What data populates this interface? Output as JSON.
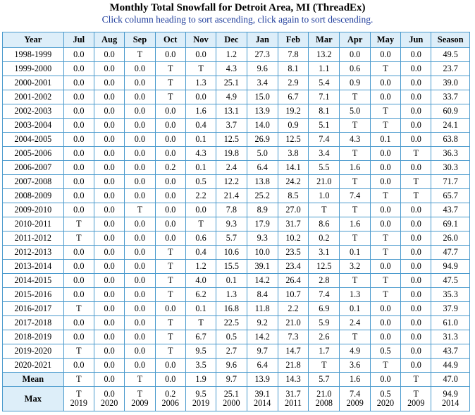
{
  "title": "Monthly Total Snowfall for Detroit Area, MI (ThreadEx)",
  "subtitle": "Click column heading to sort ascending, click again to sort descending.",
  "columns": [
    "Year",
    "Jul",
    "Aug",
    "Sep",
    "Oct",
    "Nov",
    "Dec",
    "Jan",
    "Feb",
    "Mar",
    "Apr",
    "May",
    "Jun",
    "Season"
  ],
  "rows": [
    [
      "1998-1999",
      "0.0",
      "0.0",
      "T",
      "0.0",
      "0.0",
      "1.2",
      "27.3",
      "7.8",
      "13.2",
      "0.0",
      "0.0",
      "0.0",
      "49.5"
    ],
    [
      "1999-2000",
      "0.0",
      "0.0",
      "0.0",
      "T",
      "T",
      "4.3",
      "9.6",
      "8.1",
      "1.1",
      "0.6",
      "T",
      "0.0",
      "23.7"
    ],
    [
      "2000-2001",
      "0.0",
      "0.0",
      "0.0",
      "T",
      "1.3",
      "25.1",
      "3.4",
      "2.9",
      "5.4",
      "0.9",
      "0.0",
      "0.0",
      "39.0"
    ],
    [
      "2001-2002",
      "0.0",
      "0.0",
      "0.0",
      "T",
      "0.0",
      "4.9",
      "15.0",
      "6.7",
      "7.1",
      "T",
      "0.0",
      "0.0",
      "33.7"
    ],
    [
      "2002-2003",
      "0.0",
      "0.0",
      "0.0",
      "0.0",
      "1.6",
      "13.1",
      "13.9",
      "19.2",
      "8.1",
      "5.0",
      "T",
      "0.0",
      "60.9"
    ],
    [
      "2003-2004",
      "0.0",
      "0.0",
      "0.0",
      "0.0",
      "0.4",
      "3.7",
      "14.0",
      "0.9",
      "5.1",
      "T",
      "T",
      "0.0",
      "24.1"
    ],
    [
      "2004-2005",
      "0.0",
      "0.0",
      "0.0",
      "0.0",
      "0.1",
      "12.5",
      "26.9",
      "12.5",
      "7.4",
      "4.3",
      "0.1",
      "0.0",
      "63.8"
    ],
    [
      "2005-2006",
      "0.0",
      "0.0",
      "0.0",
      "0.0",
      "4.3",
      "19.8",
      "5.0",
      "3.8",
      "3.4",
      "T",
      "0.0",
      "T",
      "36.3"
    ],
    [
      "2006-2007",
      "0.0",
      "0.0",
      "0.0",
      "0.2",
      "0.1",
      "2.4",
      "6.4",
      "14.1",
      "5.5",
      "1.6",
      "0.0",
      "0.0",
      "30.3"
    ],
    [
      "2007-2008",
      "0.0",
      "0.0",
      "0.0",
      "0.0",
      "0.5",
      "12.2",
      "13.8",
      "24.2",
      "21.0",
      "T",
      "0.0",
      "T",
      "71.7"
    ],
    [
      "2008-2009",
      "0.0",
      "0.0",
      "0.0",
      "0.0",
      "2.2",
      "21.4",
      "25.2",
      "8.5",
      "1.0",
      "7.4",
      "T",
      "T",
      "65.7"
    ],
    [
      "2009-2010",
      "0.0",
      "0.0",
      "T",
      "0.0",
      "0.0",
      "7.8",
      "8.9",
      "27.0",
      "T",
      "T",
      "0.0",
      "0.0",
      "43.7"
    ],
    [
      "2010-2011",
      "T",
      "0.0",
      "0.0",
      "0.0",
      "T",
      "9.3",
      "17.9",
      "31.7",
      "8.6",
      "1.6",
      "0.0",
      "0.0",
      "69.1"
    ],
    [
      "2011-2012",
      "T",
      "0.0",
      "0.0",
      "0.0",
      "0.6",
      "5.7",
      "9.3",
      "10.2",
      "0.2",
      "T",
      "T",
      "0.0",
      "26.0"
    ],
    [
      "2012-2013",
      "0.0",
      "0.0",
      "0.0",
      "T",
      "0.4",
      "10.6",
      "10.0",
      "23.5",
      "3.1",
      "0.1",
      "T",
      "0.0",
      "47.7"
    ],
    [
      "2013-2014",
      "0.0",
      "0.0",
      "0.0",
      "T",
      "1.2",
      "15.5",
      "39.1",
      "23.4",
      "12.5",
      "3.2",
      "0.0",
      "0.0",
      "94.9"
    ],
    [
      "2014-2015",
      "0.0",
      "0.0",
      "0.0",
      "T",
      "4.0",
      "0.1",
      "14.2",
      "26.4",
      "2.8",
      "T",
      "T",
      "0.0",
      "47.5"
    ],
    [
      "2015-2016",
      "0.0",
      "0.0",
      "0.0",
      "T",
      "6.2",
      "1.3",
      "8.4",
      "10.7",
      "7.4",
      "1.3",
      "T",
      "0.0",
      "35.3"
    ],
    [
      "2016-2017",
      "T",
      "0.0",
      "0.0",
      "0.0",
      "0.1",
      "16.8",
      "11.8",
      "2.2",
      "6.9",
      "0.1",
      "0.0",
      "0.0",
      "37.9"
    ],
    [
      "2017-2018",
      "0.0",
      "0.0",
      "0.0",
      "T",
      "T",
      "22.5",
      "9.2",
      "21.0",
      "5.9",
      "2.4",
      "0.0",
      "0.0",
      "61.0"
    ],
    [
      "2018-2019",
      "0.0",
      "0.0",
      "0.0",
      "T",
      "6.7",
      "0.5",
      "14.2",
      "7.3",
      "2.6",
      "T",
      "0.0",
      "0.0",
      "31.3"
    ],
    [
      "2019-2020",
      "T",
      "0.0",
      "0.0",
      "T",
      "9.5",
      "2.7",
      "9.7",
      "14.7",
      "1.7",
      "4.9",
      "0.5",
      "0.0",
      "43.7"
    ],
    [
      "2020-2021",
      "0.0",
      "0.0",
      "0.0",
      "0.0",
      "3.5",
      "9.6",
      "6.4",
      "21.8",
      "T",
      "3.6",
      "T",
      "0.0",
      "44.9"
    ]
  ],
  "mean": {
    "label": "Mean",
    "values": [
      "T",
      "0.0",
      "T",
      "0.0",
      "1.9",
      "9.7",
      "13.9",
      "14.3",
      "5.7",
      "1.6",
      "0.0",
      "T",
      "47.0"
    ]
  },
  "max": {
    "label": "Max",
    "values": [
      {
        "v": "T",
        "y": "2019"
      },
      {
        "v": "0.0",
        "y": "2020"
      },
      {
        "v": "T",
        "y": "2009"
      },
      {
        "v": "0.2",
        "y": "2006"
      },
      {
        "v": "9.5",
        "y": "2019"
      },
      {
        "v": "25.1",
        "y": "2000"
      },
      {
        "v": "39.1",
        "y": "2014"
      },
      {
        "v": "31.7",
        "y": "2011"
      },
      {
        "v": "21.0",
        "y": "2008"
      },
      {
        "v": "7.4",
        "y": "2009"
      },
      {
        "v": "0.5",
        "y": "2020"
      },
      {
        "v": "T",
        "y": "2009"
      },
      {
        "v": "94.9",
        "y": "2014"
      }
    ]
  }
}
